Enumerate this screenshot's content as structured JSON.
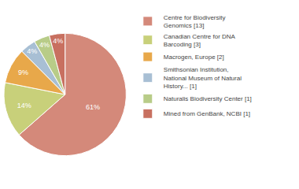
{
  "chart_data": {
    "type": "pie",
    "categories": [
      "Centre for Biodiversity\nGenomics [13]",
      "Canadian Centre for DNA\nBarcoding [3]",
      "Macrogen, Europe [2]",
      "Smithsonian Institution,\nNational Museum of Natural\nHistory... [1]",
      "Naturalis Biodiversity Center [1]",
      "Mined from GenBank, NCBI [1]"
    ],
    "values": [
      61,
      14,
      9,
      4,
      4,
      4
    ],
    "value_labels": [
      "61%",
      "14%",
      "9%",
      "4%",
      "4%",
      "4%"
    ],
    "data_labels": true,
    "colors": [
      "#d4897a",
      "#c8d07a",
      "#e8a84a",
      "#a8bfd4",
      "#b8cc88",
      "#c87060"
    ],
    "legend": "right"
  }
}
